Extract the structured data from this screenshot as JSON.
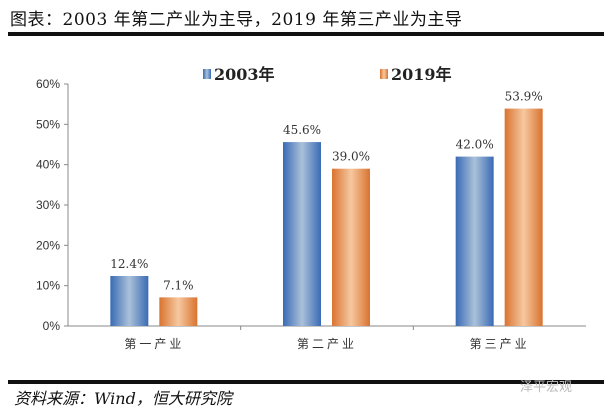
{
  "title": "图表：2003 年第二产业为主导，2019 年第三产业为主导",
  "source": "资料来源：Wind，恒大研究院",
  "watermark": "泽平宏观",
  "chart_data": {
    "type": "bar",
    "categories": [
      "第一产业",
      "第二产业",
      "第三产业"
    ],
    "series": [
      {
        "name": "2003年",
        "values": [
          12.4,
          45.6,
          42.0
        ],
        "labels": [
          "12.4%",
          "45.6%",
          "42.0%"
        ],
        "color": "#3a6bb5",
        "highlight": "#aac1d9"
      },
      {
        "name": "2019年",
        "values": [
          7.1,
          39.0,
          53.9
        ],
        "labels": [
          "7.1%",
          "39.0%",
          "53.9%"
        ],
        "color": "#d9732f",
        "highlight": "#f6c8a0"
      }
    ],
    "ylim": [
      0,
      60
    ],
    "yticks": [
      "0%",
      "10%",
      "20%",
      "30%",
      "40%",
      "50%",
      "60%"
    ],
    "grid": false,
    "legend": "top-center"
  }
}
